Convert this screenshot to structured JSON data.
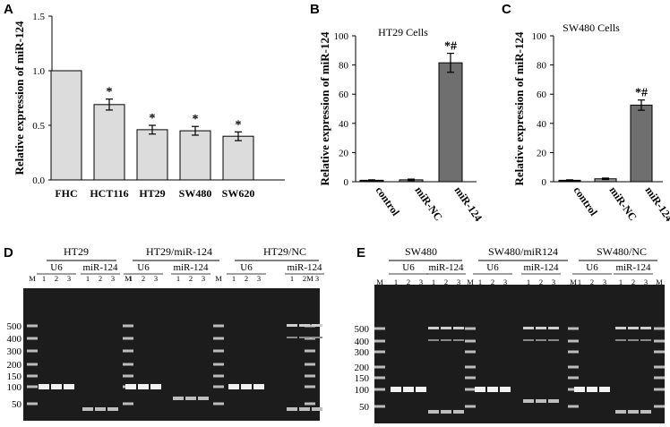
{
  "panel_labels": {
    "A": "A",
    "B": "B",
    "C": "C",
    "D": "D",
    "E": "E"
  },
  "chart_data": [
    {
      "id": "A",
      "type": "bar",
      "title": "",
      "ylabel": "Relative expression of miR-124",
      "categories": [
        "FHC",
        "HCT116",
        "HT29",
        "SW480",
        "SW620"
      ],
      "values": [
        1.0,
        0.69,
        0.46,
        0.45,
        0.4
      ],
      "errors": [
        0,
        0.05,
        0.04,
        0.04,
        0.04
      ],
      "significance": [
        "",
        "*",
        "*",
        "*",
        "*"
      ],
      "ylim": [
        0,
        1.5
      ],
      "yticks": [
        0.0,
        0.5,
        1.0,
        1.5
      ],
      "ytick_labels": [
        "0.0",
        "0.5",
        "1.0",
        "1.5"
      ],
      "bar_color": "#dcdcdc",
      "grid": false
    },
    {
      "id": "B",
      "type": "bar",
      "title": "HT29 Cells",
      "ylabel": "Relative expression of miR-124",
      "categories": [
        "control",
        "miR-NC",
        "miR-124"
      ],
      "values": [
        1.0,
        1.3,
        81.5
      ],
      "errors": [
        0.3,
        0.5,
        6.5
      ],
      "significance": [
        "",
        "",
        "*#"
      ],
      "ylim": [
        0,
        100
      ],
      "yticks": [
        0,
        20,
        40,
        60,
        80,
        100
      ],
      "ytick_labels": [
        "0",
        "20",
        "40",
        "60",
        "80",
        "100"
      ],
      "bar_colors": [
        "#111111",
        "#9a9a9a",
        "#6f6f6f"
      ],
      "grid": false
    },
    {
      "id": "C",
      "type": "bar",
      "title": "SW480  Cells",
      "ylabel": "Relative expression of miR-124",
      "categories": [
        "control",
        "miR-NC",
        "miR-124"
      ],
      "values": [
        1.0,
        2.0,
        52.5
      ],
      "errors": [
        0.3,
        0.5,
        3.5
      ],
      "significance": [
        "",
        "",
        "*#"
      ],
      "ylim": [
        0,
        100
      ],
      "yticks": [
        0,
        20,
        40,
        60,
        80,
        100
      ],
      "ytick_labels": [
        "0",
        "20",
        "40",
        "60",
        "80",
        "100"
      ],
      "bar_colors": [
        "#111111",
        "#9a9a9a",
        "#6f6f6f"
      ],
      "grid": false
    }
  ],
  "gels": [
    {
      "id": "D",
      "groups": [
        {
          "title": "HT29",
          "subgroups": [
            {
              "label": "U6",
              "lanes": [
                "1",
                "2",
                "3"
              ]
            },
            {
              "label": "miR-124",
              "lanes": [
                "1",
                "2",
                "3"
              ]
            }
          ]
        },
        {
          "title": "HT29/miR-124",
          "subgroups": [
            {
              "label": "U6",
              "lanes": [
                "1",
                "2",
                "3"
              ]
            },
            {
              "label": "miR-124",
              "lanes": [
                "1",
                "2",
                "3"
              ]
            }
          ]
        },
        {
          "title": "HT29/NC",
          "subgroups": [
            {
              "label": "U6",
              "lanes": [
                "1",
                "2",
                "3"
              ]
            },
            {
              "label": "miR-124",
              "lanes": [
                "1",
                "2",
                "3"
              ]
            }
          ]
        }
      ],
      "marker_label": "M",
      "size_labels": [
        "500",
        "400",
        "300",
        "200",
        "150",
        "100",
        "50"
      ]
    },
    {
      "id": "E",
      "groups": [
        {
          "title": "SW480",
          "subgroups": [
            {
              "label": "U6",
              "lanes": [
                "1",
                "2",
                "3"
              ]
            },
            {
              "label": "miR-124",
              "lanes": [
                "1",
                "2",
                "3"
              ]
            }
          ]
        },
        {
          "title": "SW480/miR124",
          "subgroups": [
            {
              "label": "U6",
              "lanes": [
                "1",
                "2",
                "3"
              ]
            },
            {
              "label": "miR-124",
              "lanes": [
                "1",
                "2",
                "3"
              ]
            }
          ]
        },
        {
          "title": "SW480/NC",
          "subgroups": [
            {
              "label": "U6",
              "lanes": [
                "1",
                "2",
                "3"
              ]
            },
            {
              "label": "miR-124",
              "lanes": [
                "1",
                "2",
                "3"
              ]
            }
          ]
        }
      ],
      "marker_label": "M",
      "size_labels": [
        "500",
        "400",
        "300",
        "200",
        "150",
        "100",
        "50"
      ]
    }
  ]
}
